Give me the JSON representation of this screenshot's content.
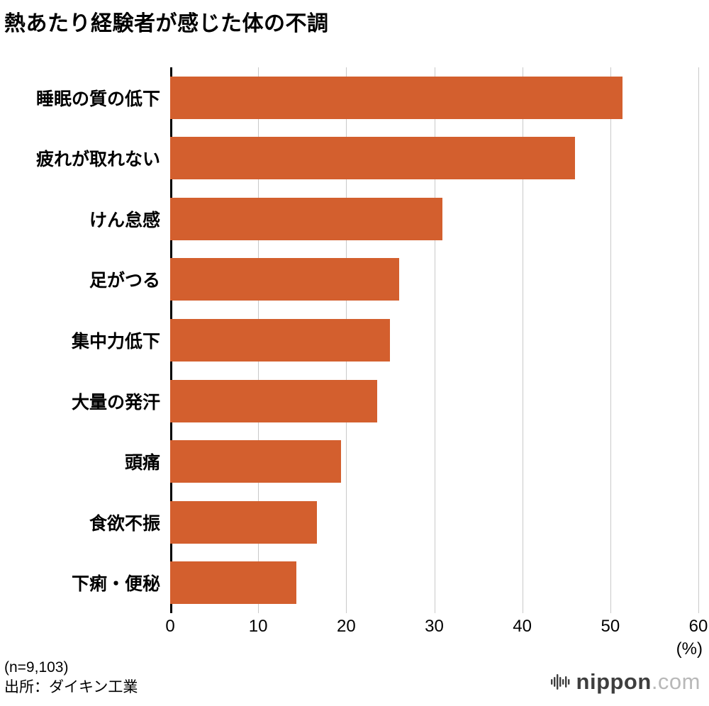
{
  "title": "熱あたり経験者が感じた体の不調",
  "chart_data": {
    "type": "bar",
    "orientation": "horizontal",
    "title": "熱あたり経験者が感じた体の不調",
    "categories": [
      "睡眠の質の低下",
      "疲れが取れない",
      "けん怠感",
      "足がつる",
      "集中力低下",
      "大量の発汗",
      "頭痛",
      "食欲不振",
      "下痢・便秘"
    ],
    "values": [
      51.4,
      46.0,
      30.9,
      26.0,
      25.0,
      23.5,
      19.4,
      16.7,
      14.3
    ],
    "xlim": [
      0,
      60
    ],
    "xticks": [
      0,
      10,
      20,
      30,
      40,
      50,
      60
    ],
    "unit_label": "(%)",
    "bar_color": "#d35f2e",
    "grid": true,
    "legend": "none"
  },
  "footer": {
    "sample": "(n=9,103)",
    "source": "出所：ダイキン工業"
  },
  "branding": {
    "name": "nippon",
    "tld": ".com",
    "icon": "soundwave-icon"
  }
}
